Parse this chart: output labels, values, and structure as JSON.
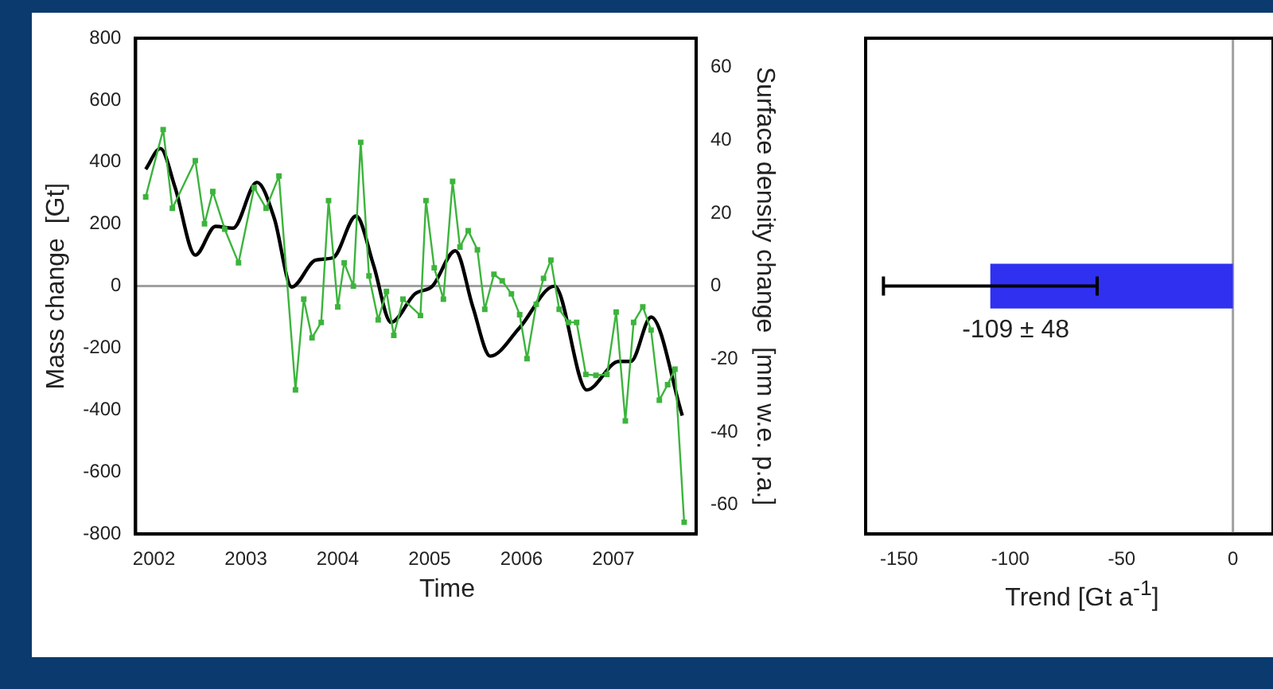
{
  "chart_data": [
    {
      "type": "line",
      "xlabel": "Time",
      "ylabel": "Mass change  [Gt]",
      "y2label": "Surface density change  [mm w.e. p.a.]",
      "xlim": [
        2001.8,
        2007.9
      ],
      "xticks": [
        2002,
        2003,
        2004,
        2005,
        2006,
        2007
      ],
      "ylim": [
        -800,
        800
      ],
      "yticks": [
        -800,
        -600,
        -400,
        -200,
        0,
        200,
        400,
        600,
        800
      ],
      "y2lim": [
        -68,
        68
      ],
      "y2ticks": [
        -60,
        -40,
        -20,
        0,
        20,
        40,
        60
      ],
      "grid": false,
      "legend": false,
      "ref_lines": [
        {
          "axis": "y",
          "value": 0,
          "color": "#a0a0a0"
        }
      ],
      "series": [
        {
          "color": "#3cb43c",
          "marker": "square",
          "x": [
            2001.91,
            2002.1,
            2002.2,
            2002.45,
            2002.55,
            2002.64,
            2002.77,
            2002.92,
            2003.09,
            2003.22,
            2003.36,
            2003.54,
            2003.63,
            2003.72,
            2003.82,
            2003.9,
            2004.0,
            2004.07,
            2004.17,
            2004.25,
            2004.34,
            2004.44,
            2004.53,
            2004.61,
            2004.71,
            2004.9,
            2004.96,
            2005.05,
            2005.15,
            2005.25,
            2005.33,
            2005.42,
            2005.52,
            2005.6,
            2005.7,
            2005.79,
            2005.89,
            2005.98,
            2006.06,
            2006.16,
            2006.24,
            2006.32,
            2006.41,
            2006.51,
            2006.6,
            2006.7,
            2006.81,
            2006.93,
            2007.03,
            2007.13,
            2007.22,
            2007.32,
            2007.41,
            2007.5,
            2007.59,
            2007.67,
            2007.77
          ],
          "values": [
            288,
            505,
            251,
            405,
            201,
            305,
            184,
            75,
            318,
            251,
            355,
            -335,
            -42,
            -167,
            -117,
            276,
            -67,
            75,
            0,
            464,
            33,
            -109,
            -17,
            -159,
            -42,
            -95,
            276,
            59,
            -42,
            338,
            126,
            179,
            117,
            -75,
            38,
            17,
            -25,
            -92,
            -234,
            -59,
            25,
            84,
            -75,
            -117,
            -117,
            -285,
            -288,
            -285,
            -84,
            -435,
            -117,
            -67,
            -142,
            -368,
            -318,
            -268,
            -762
          ]
        },
        {
          "color": "#000000",
          "marker": "none",
          "x": [
            2001.91,
            2002.07,
            2002.23,
            2002.45,
            2002.67,
            2002.86,
            2003.12,
            2003.31,
            2003.5,
            2003.76,
            2003.95,
            2004.2,
            2004.39,
            2004.58,
            2004.84,
            2005.03,
            2005.28,
            2005.47,
            2005.66,
            2005.98,
            2006.36,
            2006.71,
            2007.06,
            2007.19,
            2007.41,
            2007.75
          ],
          "values": [
            377,
            444,
            318,
            100,
            193,
            187,
            335,
            218,
            -3,
            84,
            92,
            226,
            67,
            -117,
            -25,
            0,
            114,
            -67,
            -226,
            -134,
            0,
            -335,
            -243,
            -243,
            -100,
            -418
          ]
        }
      ]
    },
    {
      "type": "bar",
      "orientation": "horizontal",
      "xlabel": "Trend [Gt a$^{-1}$]",
      "categories": [
        null
      ],
      "values": [
        -109
      ],
      "errors": [
        48
      ],
      "value_labels": [
        "-109 ± 48"
      ],
      "color": "#3030f0",
      "xlim": [
        -165,
        18
      ],
      "xticks": [
        -150,
        -100,
        -50,
        0
      ],
      "tick_labels": "x",
      "grid": false,
      "legend": false,
      "ref_lines": [
        {
          "axis": "x",
          "value": 0,
          "color": "#a0a0a0"
        }
      ]
    }
  ]
}
